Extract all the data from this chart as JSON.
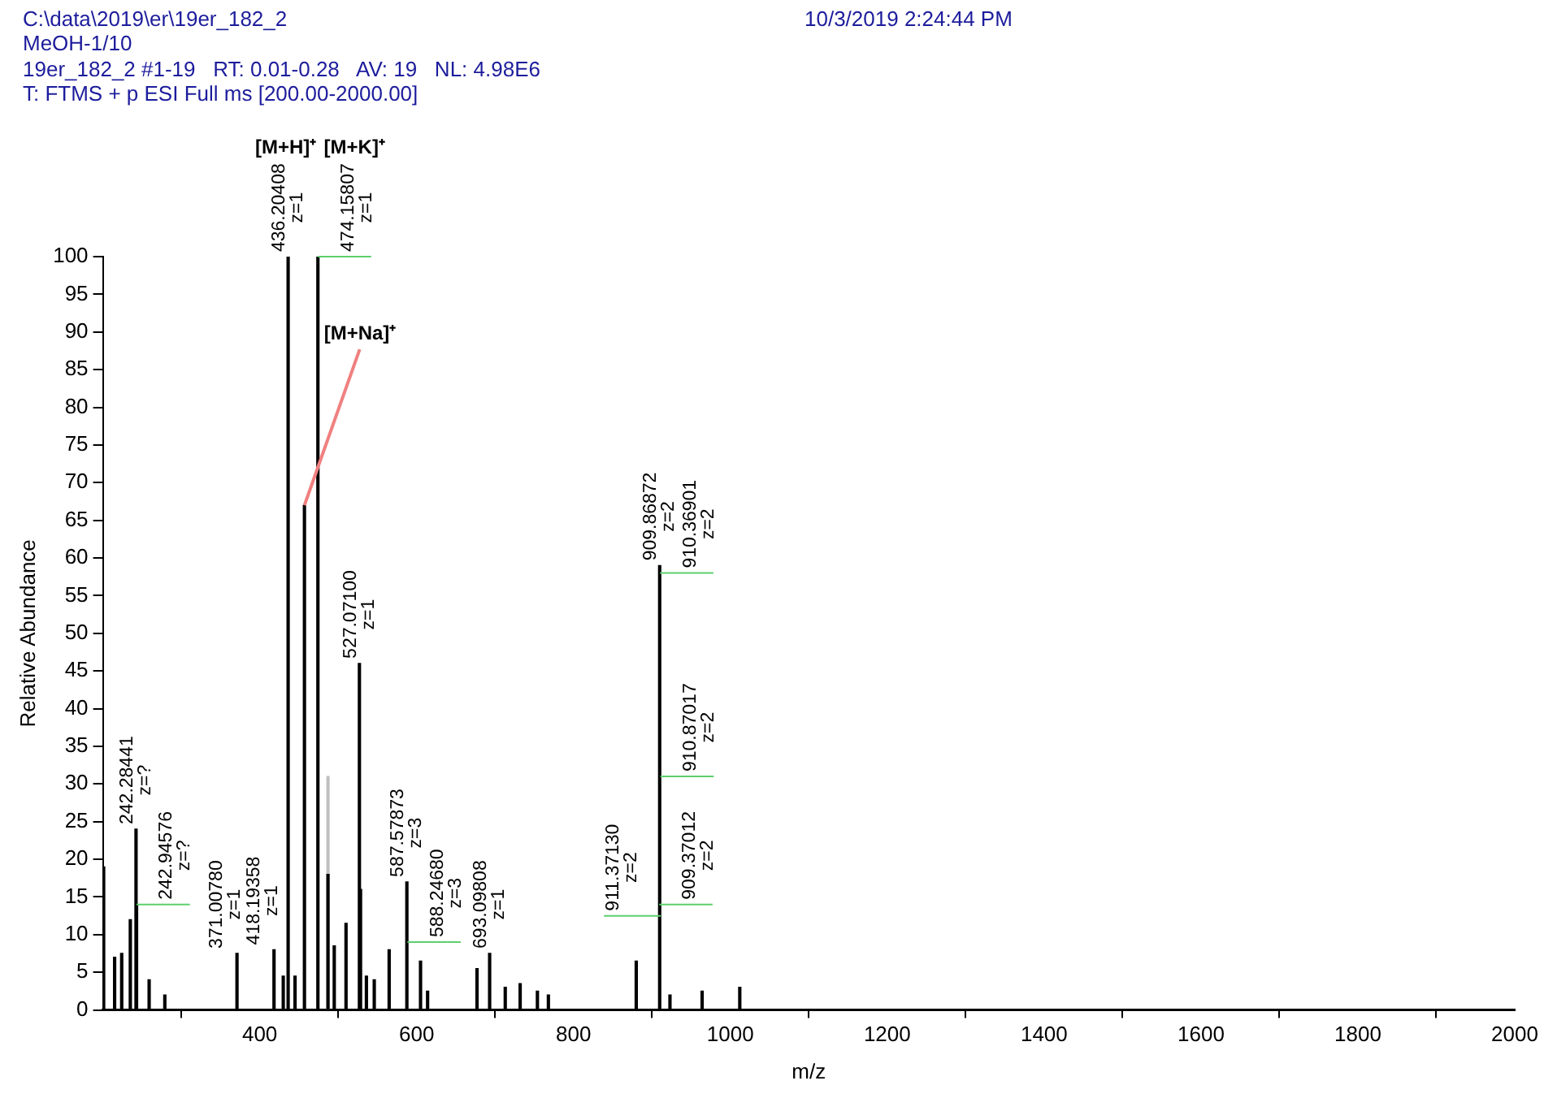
{
  "chart_data": {
    "type": "bar",
    "title": "C:\\data\\2019\\er\\19er_182_2",
    "subtitle": "MeOH-1/10",
    "annotations": [
      "10/3/2019 2:24:44 PM",
      "19er_182_2 #1-19   RT: 0.01-0.28   AV: 19   NL: 4.98E6",
      "T: FTMS + p ESI Full ms [200.00-2000.00]",
      "[M+H]⁺",
      "[M+K]⁺",
      {
        "text": "[M+Na]⁺",
        "x": 457,
        "y": 67
      },
      {
        "text": "242.28441\nz=?",
        "x": 242.28441,
        "y": 24
      },
      {
        "text": "242.94576\nz=?",
        "x": 242.94576,
        "y": 14
      },
      {
        "text": "371.00780\nz=1",
        "x": 371.0078,
        "y": 7.5
      },
      {
        "text": "418.19358\nz=1",
        "x": 418.19358,
        "y": 8
      },
      {
        "text": "436.20408\nz=1",
        "x": 436.20408,
        "y": 100
      },
      {
        "text": "474.15807\nz=1",
        "x": 474.15807,
        "y": 100
      },
      {
        "text": "527.07100\nz=1",
        "x": 527.071,
        "y": 46
      },
      {
        "text": "587.57873\nz=3",
        "x": 587.57873,
        "y": 17
      },
      {
        "text": "588.24680\nz=3",
        "x": 588.2468,
        "y": 9
      },
      {
        "text": "693.09808\nz=1",
        "x": 693.09808,
        "y": 7.5
      },
      {
        "text": "909.37012\nz=2",
        "x": 909.37012,
        "y": 14
      },
      {
        "text": "909.86872\nz=2",
        "x": 909.86872,
        "y": 59
      },
      {
        "text": "910.36901\nz=2",
        "x": 910.36901,
        "y": 58
      },
      {
        "text": "910.87017\nz=2",
        "x": 910.87017,
        "y": 31
      },
      {
        "text": "911.37130\nz=2",
        "x": 911.3713,
        "y": 12.5
      }
    ],
    "xlabel": "m/z",
    "ylabel": "Relative Abundance",
    "xlim": [
      200,
      2000
    ],
    "xticks": [
      400,
      600,
      800,
      1000,
      1200,
      1400,
      1600,
      1800,
      2000
    ],
    "ylim": [
      0,
      100
    ],
    "yticks": [
      0,
      5,
      10,
      15,
      20,
      25,
      30,
      35,
      40,
      45,
      50,
      55,
      60,
      65,
      70,
      75,
      80,
      85,
      90,
      95,
      100
    ],
    "series": [
      {
        "color": "#000000",
        "x": [
          201,
          215,
          224,
          235,
          242.28441,
          242.94576,
          259,
          279,
          371.0078,
          418.19358,
          430,
          436.20408,
          445,
          457,
          474.15807,
          487,
          495,
          510,
          527.071,
          528.5,
          536,
          546,
          565,
          587.57873,
          588.2468,
          605,
          614,
          677,
          693.09808,
          713,
          732,
          754,
          768,
          880,
          909.37012,
          909.86872,
          910.36901,
          910.87017,
          911.3713,
          923,
          964,
          1012
        ],
        "values": [
          19,
          7,
          7.5,
          12,
          24,
          14,
          4,
          2,
          7.5,
          8,
          4.5,
          100,
          4.5,
          67,
          100,
          18,
          8.5,
          11.5,
          46,
          16,
          4.5,
          4,
          8,
          17,
          null,
          6.5,
          2.5,
          5.5,
          7.5,
          3,
          3.5,
          2.5,
          2,
          6.5,
          null,
          59,
          null,
          null,
          null,
          2,
          2.5,
          3
        ]
      },
      {
        "color": "#c0c0c0",
        "x": [
          487
        ],
        "values": [
          31
        ]
      }
    ]
  }
}
